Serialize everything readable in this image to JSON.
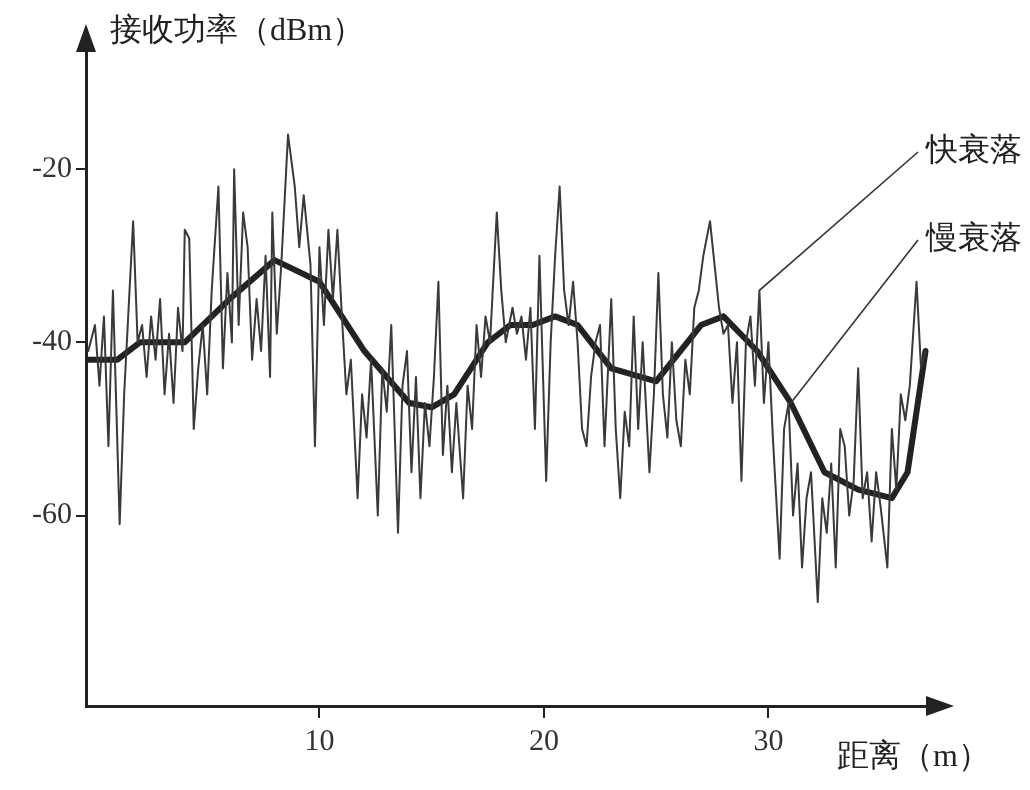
{
  "chart_data": {
    "type": "line",
    "xlabel": "距离（m）",
    "ylabel": "接收功率（dBm）",
    "xlim": [
      -0.4,
      37.2
    ],
    "ylim": [
      -82,
      -6
    ],
    "xticks": [
      10,
      20,
      30
    ],
    "yticks": [
      -20,
      -40,
      -60
    ],
    "legend": false,
    "marker": "none",
    "series": [
      {
        "name": "快衰落",
        "color": "#3a3a3a",
        "x": [
          -0.3,
          0,
          0.2,
          0.4,
          0.6,
          0.8,
          1.1,
          1.3,
          1.5,
          1.7,
          1.9,
          2.1,
          2.3,
          2.5,
          2.7,
          2.9,
          3.1,
          3.3,
          3.5,
          3.7,
          3.9,
          4.0,
          4.2,
          4.4,
          4.6,
          4.8,
          5.0,
          5.2,
          5.5,
          5.7,
          5.9,
          6.1,
          6.2,
          6.4,
          6.6,
          6.8,
          7.0,
          7.2,
          7.4,
          7.6,
          7.8,
          7.9,
          8.1,
          8.3,
          8.6,
          8.9,
          9.1,
          9.3,
          9.6,
          9.8,
          10.0,
          10.2,
          10.4,
          10.6,
          10.8,
          11.0,
          11.2,
          11.4,
          11.7,
          11.9,
          12.1,
          12.3,
          12.6,
          12.8,
          13.0,
          13.2,
          13.5,
          13.7,
          13.9,
          14.1,
          14.3,
          14.5,
          14.7,
          14.9,
          15.1,
          15.3,
          15.5,
          15.7,
          15.9,
          16.1,
          16.4,
          16.6,
          16.8,
          17.0,
          17.2,
          17.4,
          17.6,
          17.9,
          18.1,
          18.3,
          18.6,
          18.8,
          19.0,
          19.2,
          19.4,
          19.6,
          19.8,
          20.1,
          20.3,
          20.5,
          20.7,
          20.9,
          21.1,
          21.3,
          21.5,
          21.7,
          21.9,
          22.1,
          22.3,
          22.5,
          22.7,
          23.0,
          23.2,
          23.4,
          23.6,
          23.8,
          24.0,
          24.2,
          24.4,
          24.7,
          24.9,
          25.1,
          25.3,
          25.5,
          25.7,
          25.9,
          26.1,
          26.3,
          26.5,
          26.7,
          26.9,
          27.1,
          27.4,
          27.6,
          27.8,
          28.0,
          28.2,
          28.4,
          28.6,
          28.8,
          29.0,
          29.2,
          29.4,
          29.6,
          29.8,
          30.0,
          30.2,
          30.5,
          30.7,
          30.9,
          31.1,
          31.3,
          31.5,
          31.7,
          31.9,
          32.2,
          32.4,
          32.6,
          32.8,
          33.0,
          33.2,
          33.4,
          33.6,
          33.8,
          34.0,
          34.2,
          34.4,
          34.6,
          34.8,
          35.0,
          35.3,
          35.5,
          35.7,
          35.9,
          36.1,
          36.3,
          36.6,
          36.8,
          37.0
        ],
        "values": [
          -41,
          -38,
          -45,
          -37,
          -52,
          -34,
          -61,
          -46,
          -36,
          -26,
          -40,
          -38,
          -44,
          -37,
          -42,
          -35,
          -46,
          -39,
          -47,
          -36,
          -41,
          -27,
          -28,
          -50,
          -43,
          -38,
          -46,
          -34,
          -22,
          -43,
          -32,
          -40,
          -20,
          -38,
          -25,
          -29,
          -42,
          -35,
          -41,
          -30,
          -44,
          -25,
          -39,
          -31,
          -16,
          -22,
          -29,
          -23,
          -31,
          -52,
          -29,
          -38,
          -27,
          -35,
          -27,
          -37,
          -46,
          -42,
          -58,
          -46,
          -51,
          -42,
          -60,
          -43,
          -48,
          -38,
          -62,
          -45,
          -41,
          -55,
          -44,
          -58,
          -47,
          -52,
          -44,
          -33,
          -53,
          -45,
          -55,
          -47,
          -58,
          -45,
          -50,
          -38,
          -44,
          -37,
          -40,
          -25,
          -34,
          -40,
          -36,
          -39,
          -37,
          -42,
          -36,
          -50,
          -30,
          -56,
          -40,
          -30,
          -22,
          -34,
          -38,
          -33,
          -40,
          -50,
          -52,
          -44,
          -40,
          -38,
          -52,
          -35,
          -50,
          -58,
          -48,
          -52,
          -37,
          -50,
          -40,
          -55,
          -46,
          -32,
          -46,
          -51,
          -40,
          -49,
          -52,
          -42,
          -46,
          -36,
          -34,
          -30,
          -26,
          -31,
          -36,
          -39,
          -38,
          -47,
          -40,
          -56,
          -40,
          -37,
          -45,
          -34,
          -47,
          -40,
          -51,
          -65,
          -50,
          -47,
          -60,
          -54,
          -66,
          -58,
          -55,
          -70,
          -58,
          -62,
          -54,
          -66,
          -50,
          -52,
          -60,
          -56,
          -43,
          -58,
          -55,
          -63,
          -55,
          -59,
          -66,
          -50,
          -57,
          -46,
          -49,
          -45,
          -33,
          -43,
          -41
        ]
      },
      {
        "name": "慢衰落",
        "color": "#222222",
        "x": [
          -0.3,
          1,
          2,
          4,
          6,
          8,
          10,
          12,
          14,
          15,
          16,
          17.5,
          18.5,
          19.5,
          20.5,
          21.5,
          23,
          25,
          27,
          28,
          29.5,
          31,
          32.5,
          34,
          35.5,
          36.2,
          37
        ],
        "values": [
          -42,
          -42,
          -40,
          -40,
          -35,
          -30.5,
          -33,
          -41,
          -47,
          -47.5,
          -46,
          -40,
          -38,
          -38,
          -37,
          -38,
          -43,
          -44.5,
          -38,
          -37,
          -41,
          -47,
          -55,
          -57,
          -58,
          -55,
          -41
        ]
      }
    ]
  }
}
